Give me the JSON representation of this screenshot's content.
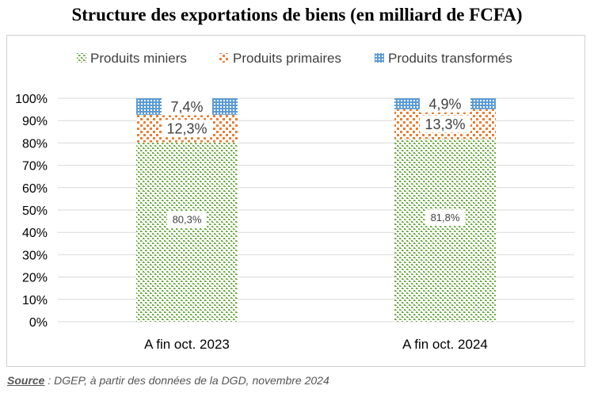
{
  "title": "Structure des exportations de biens (en milliard de FCFA)",
  "source": {
    "label": "Source",
    "text": " : DGEP, à partir des données de la DGD, novembre 2024"
  },
  "chart_data": {
    "type": "bar",
    "stacked": true,
    "categories": [
      "A fin oct. 2023",
      "A fin oct. 2024"
    ],
    "series": [
      {
        "name": "Produits miniers",
        "values": [
          80.3,
          81.8
        ],
        "labels": [
          "80,3%",
          "81,8%"
        ],
        "color": "#70ad47",
        "pattern": "dots"
      },
      {
        "name": "Produits primaires",
        "values": [
          12.3,
          13.3
        ],
        "labels": [
          "12,3%",
          "13,3%"
        ],
        "color": "#ed7d31",
        "pattern": "squares"
      },
      {
        "name": "Produits transformés",
        "values": [
          7.4,
          4.9
        ],
        "labels": [
          "7,4%",
          "4,9%"
        ],
        "color": "#5b9bd5",
        "pattern": "grid"
      }
    ],
    "yticks": [
      "0%",
      "10%",
      "20%",
      "30%",
      "40%",
      "50%",
      "60%",
      "70%",
      "80%",
      "90%",
      "100%"
    ],
    "ylim": [
      0,
      100
    ],
    "grid": true,
    "legend": "top"
  }
}
